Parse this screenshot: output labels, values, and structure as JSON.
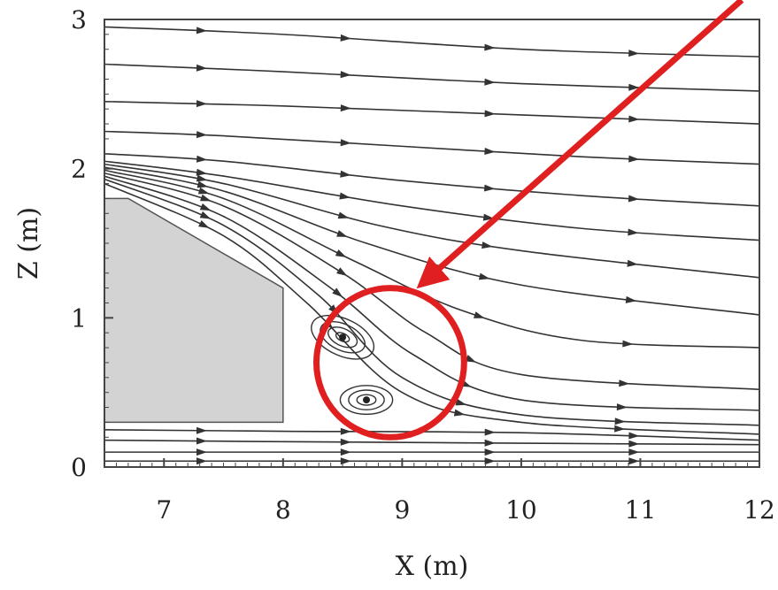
{
  "chart_data": {
    "type": "streamline",
    "title": "",
    "xlabel": "X (m)",
    "ylabel": "Z (m)",
    "xlim": [
      6.5,
      12
    ],
    "ylim": [
      0,
      3
    ],
    "x_ticks": [
      7,
      8,
      9,
      10,
      11,
      12
    ],
    "y_ticks": [
      0,
      1,
      2,
      3
    ],
    "x_tick_labels": [
      "7",
      "8",
      "9",
      "10",
      "11",
      "12"
    ],
    "y_tick_labels": [
      "0",
      "1",
      "2",
      "3"
    ],
    "grid": false,
    "obstacle": {
      "fill": "#d3d3d3",
      "vertices": [
        [
          6.5,
          0.3
        ],
        [
          6.5,
          1.8
        ],
        [
          6.7,
          1.8
        ],
        [
          8.0,
          1.2
        ],
        [
          8.0,
          0.3
        ]
      ]
    },
    "streamlines": [
      [
        [
          6.5,
          2.95
        ],
        [
          8,
          2.9
        ],
        [
          10,
          2.8
        ],
        [
          12,
          2.75
        ]
      ],
      [
        [
          6.5,
          2.7
        ],
        [
          8,
          2.65
        ],
        [
          10,
          2.57
        ],
        [
          12,
          2.52
        ]
      ],
      [
        [
          6.5,
          2.45
        ],
        [
          8,
          2.42
        ],
        [
          10,
          2.36
        ],
        [
          12,
          2.3
        ]
      ],
      [
        [
          6.5,
          2.25
        ],
        [
          7.5,
          2.22
        ],
        [
          9,
          2.15
        ],
        [
          10.5,
          2.08
        ],
        [
          12,
          2.03
        ]
      ],
      [
        [
          6.5,
          2.1
        ],
        [
          7.5,
          2.05
        ],
        [
          9,
          1.92
        ],
        [
          10.5,
          1.82
        ],
        [
          12,
          1.75
        ]
      ],
      [
        [
          6.5,
          2.05
        ],
        [
          7.5,
          1.95
        ],
        [
          9,
          1.75
        ],
        [
          10.5,
          1.6
        ],
        [
          12,
          1.52
        ]
      ],
      [
        [
          6.5,
          2.03
        ],
        [
          7.5,
          1.9
        ],
        [
          8.8,
          1.62
        ],
        [
          10,
          1.45
        ],
        [
          12,
          1.27
        ]
      ],
      [
        [
          6.5,
          2.01
        ],
        [
          7.5,
          1.85
        ],
        [
          8.7,
          1.5
        ],
        [
          10,
          1.22
        ],
        [
          12,
          1.02
        ]
      ],
      [
        [
          6.5,
          1.99
        ],
        [
          7.5,
          1.8
        ],
        [
          8.6,
          1.38
        ],
        [
          9.5,
          1.05
        ],
        [
          10.5,
          0.85
        ],
        [
          12,
          0.8
        ]
      ],
      [
        [
          6.5,
          1.97
        ],
        [
          7.5,
          1.75
        ],
        [
          8.5,
          1.3
        ],
        [
          9.2,
          0.9
        ],
        [
          10,
          0.62
        ],
        [
          12,
          0.52
        ]
      ],
      [
        [
          6.5,
          1.95
        ],
        [
          7.5,
          1.68
        ],
        [
          8.4,
          1.2
        ],
        [
          9.1,
          0.75
        ],
        [
          10,
          0.45
        ],
        [
          12,
          0.38
        ]
      ],
      [
        [
          6.5,
          1.93
        ],
        [
          7.5,
          1.62
        ],
        [
          8.3,
          1.15
        ],
        [
          9.0,
          0.6
        ],
        [
          10,
          0.35
        ],
        [
          12,
          0.28
        ]
      ],
      [
        [
          6.5,
          1.9
        ],
        [
          7.5,
          1.55
        ],
        [
          8.2,
          1.1
        ],
        [
          9.0,
          0.5
        ],
        [
          10,
          0.3
        ],
        [
          12,
          0.22
        ]
      ],
      [
        [
          6.5,
          0.25
        ],
        [
          8,
          0.24
        ],
        [
          10,
          0.23
        ],
        [
          12,
          0.18
        ]
      ],
      [
        [
          6.5,
          0.18
        ],
        [
          8,
          0.17
        ],
        [
          10,
          0.16
        ],
        [
          12,
          0.15
        ]
      ],
      [
        [
          6.5,
          0.1
        ],
        [
          8,
          0.1
        ],
        [
          10,
          0.1
        ],
        [
          12,
          0.1
        ]
      ],
      [
        [
          6.5,
          0.04
        ],
        [
          8,
          0.04
        ],
        [
          10,
          0.04
        ],
        [
          12,
          0.04
        ]
      ]
    ],
    "vortices": [
      {
        "center": [
          8.5,
          0.87
        ],
        "radii": [
          0.28,
          0.2,
          0.13,
          0.06
        ]
      },
      {
        "center": [
          8.7,
          0.45
        ],
        "radii": [
          0.22,
          0.15,
          0.08
        ]
      }
    ],
    "annotation": {
      "ellipse_center": [
        8.9,
        0.7
      ],
      "ellipse_radii": [
        0.62,
        0.5
      ],
      "arrow_from": [
        12,
        3.1
      ],
      "arrow_to": [
        9.1,
        1.2
      ],
      "color": "#e02020"
    }
  }
}
